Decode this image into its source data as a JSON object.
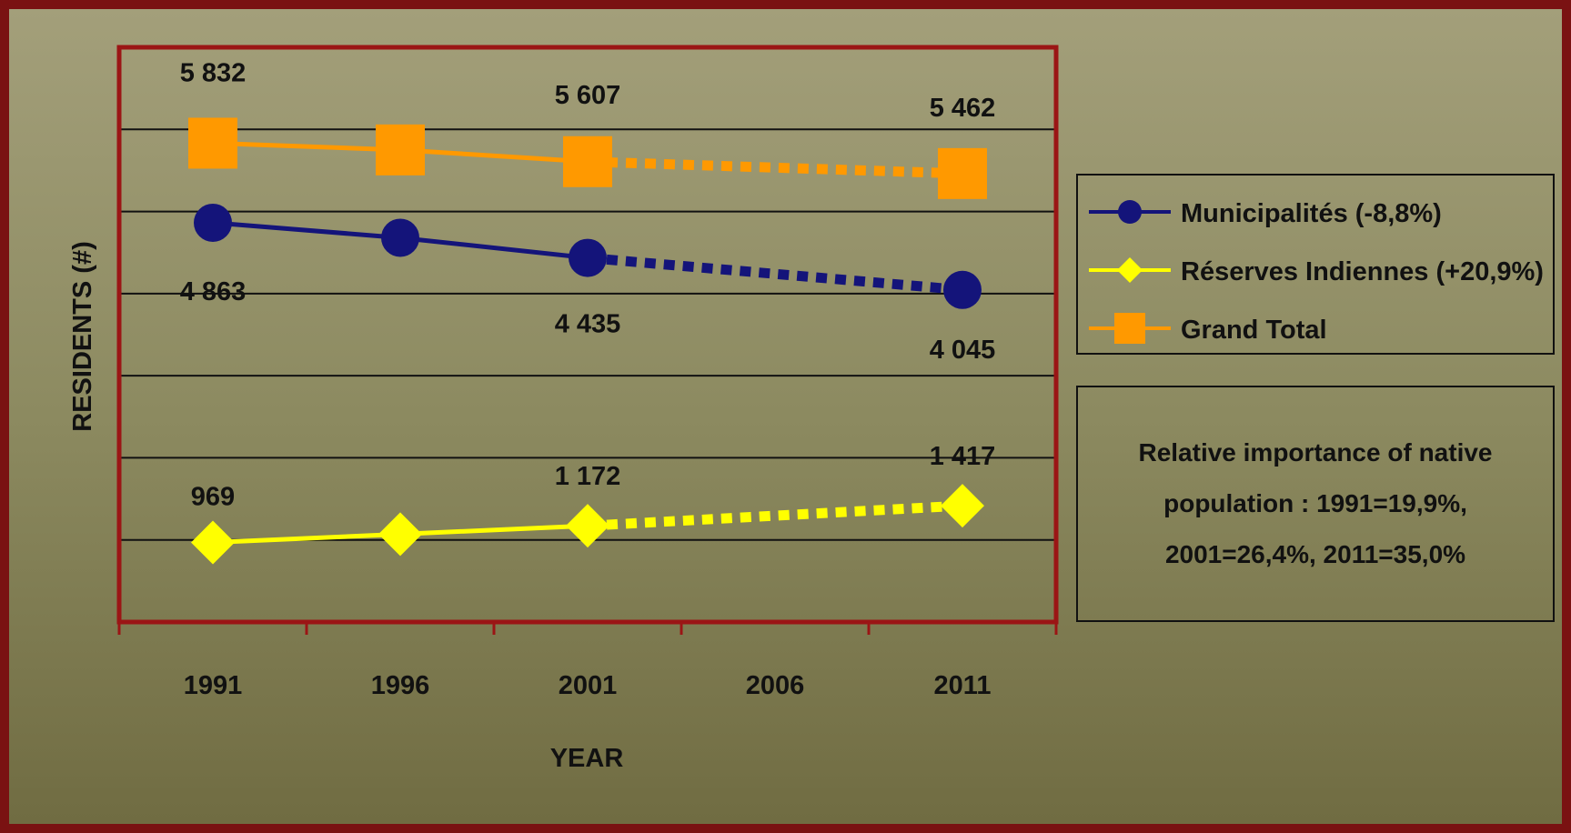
{
  "chart_data": {
    "type": "line",
    "title": "",
    "xlabel": "YEAR",
    "ylabel": "RESIDENTS (#)",
    "categories": [
      "1991",
      "1996",
      "2001",
      "2006",
      "2011"
    ],
    "ylim": [
      0,
      7000
    ],
    "grid": "horizontal",
    "legend_placement": "right",
    "series": [
      {
        "name": "Municipalités (-8,8%)",
        "color": "#14147a",
        "marker": "circle",
        "values": [
          4863,
          4680,
          4435,
          null,
          4045
        ],
        "point_labels": [
          "4 863",
          "",
          "4 435",
          "",
          "4 045"
        ],
        "dashed_from_index": 2
      },
      {
        "name": "Réserves Indiennes (+20,9%)",
        "color": "#ffff00",
        "marker": "diamond",
        "values": [
          969,
          1070,
          1172,
          null,
          1417
        ],
        "point_labels": [
          "969",
          "",
          "1 172",
          "",
          "1 417"
        ],
        "dashed_from_index": 2
      },
      {
        "name": "Grand Total",
        "color": "#ff9900",
        "marker": "square",
        "values": [
          5832,
          5750,
          5607,
          null,
          5462
        ],
        "point_labels": [
          "5 832",
          "",
          "5 607",
          "",
          "5 462"
        ],
        "dashed_from_index": 2
      }
    ],
    "annotation": "Relative importance of native population : 1991=19,9%, 2001=26,4%, 2011=35,0%"
  },
  "colors": {
    "frame_border": "#7a1212",
    "plot_border": "#9b1515",
    "gridline": "#111111"
  }
}
